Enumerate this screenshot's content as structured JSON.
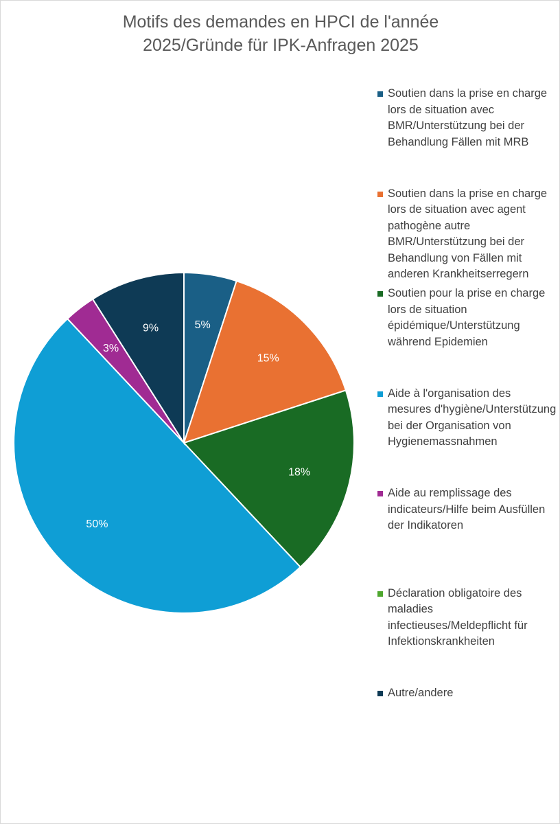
{
  "chart_data": {
    "type": "pie",
    "title": "Motifs des demandes en HPCI de l'année 2025/Gründe für IPK-Anfragen 2025",
    "categories": [
      "Soutien dans la prise en charge lors de situation avec BMR/Unterstützung bei der Behandlung Fällen mit MRB",
      "Soutien dans la prise en charge lors de situation avec agent pathogène autre BMR/Unterstützung bei der Behandlung von Fällen mit anderen Krankheitserregern",
      "Soutien pour la prise en charge lors de situation épidémique/Unterstützung während Epidemien",
      "Aide à l'organisation des mesures d'hygiène/Unterstützung bei der Organisation von Hygienemassnahmen",
      "Aide au remplissage des indicateurs/Hilfe beim Ausfüllen der Indikatoren",
      "Déclaration obligatoire des maladies infectieuses/Meldepflicht für Infektionskrankheiten",
      "Autre/andere"
    ],
    "values": [
      5,
      15,
      18,
      50,
      3,
      0,
      9
    ],
    "value_labels": [
      "5%",
      "15%",
      "18%",
      "50%",
      "3%",
      null,
      "9%"
    ],
    "colors": [
      "#1a5f86",
      "#e97132",
      "#196b24",
      "#0f9ed5",
      "#a02b93",
      "#4ea72e",
      "#0e3a55"
    ],
    "legend": "right"
  }
}
